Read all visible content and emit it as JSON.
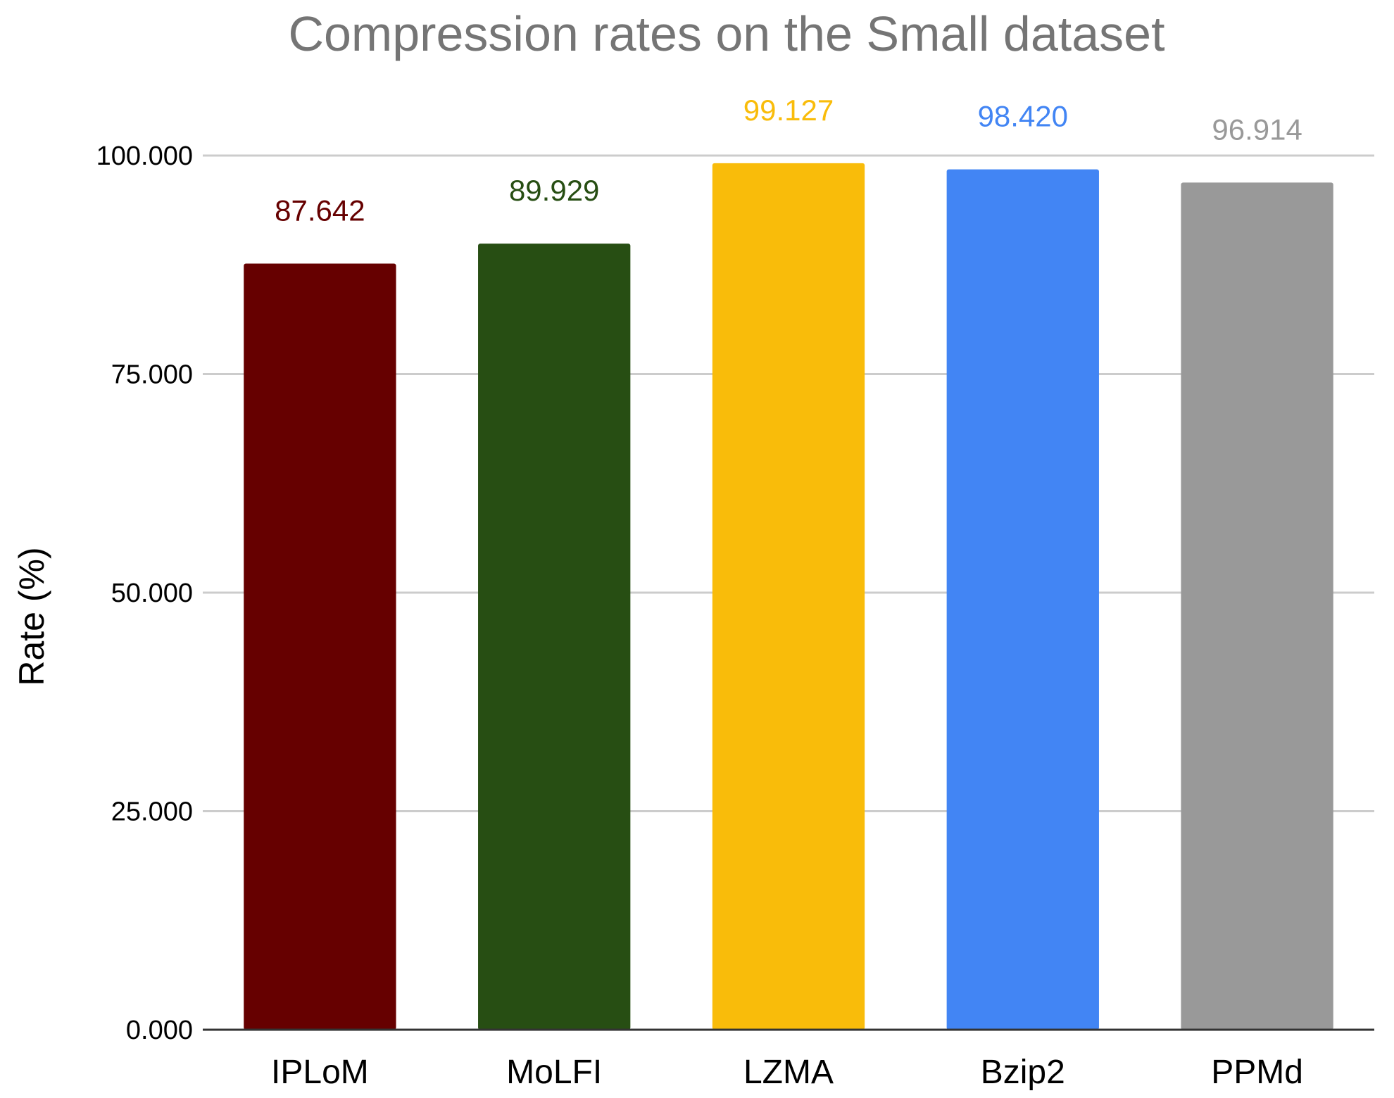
{
  "chart_data": {
    "type": "bar",
    "title": "Compression rates on the Small dataset",
    "xlabel": "",
    "ylabel": "Rate (%)",
    "ylim": [
      0,
      100
    ],
    "y_ticks": [
      "0.000",
      "25.000",
      "50.000",
      "75.000",
      "100.000"
    ],
    "categories": [
      "IPLoM",
      "MoLFI",
      "LZMA",
      "Bzip2",
      "PPMd"
    ],
    "values": [
      87.642,
      89.929,
      99.127,
      98.42,
      96.914
    ],
    "value_labels": [
      "87.642",
      "89.929",
      "99.127",
      "98.420",
      "96.914"
    ],
    "colors": [
      "#660000",
      "#274e13",
      "#f9bc0a",
      "#4285f4",
      "#999999"
    ],
    "grid": true,
    "legend": "none"
  }
}
